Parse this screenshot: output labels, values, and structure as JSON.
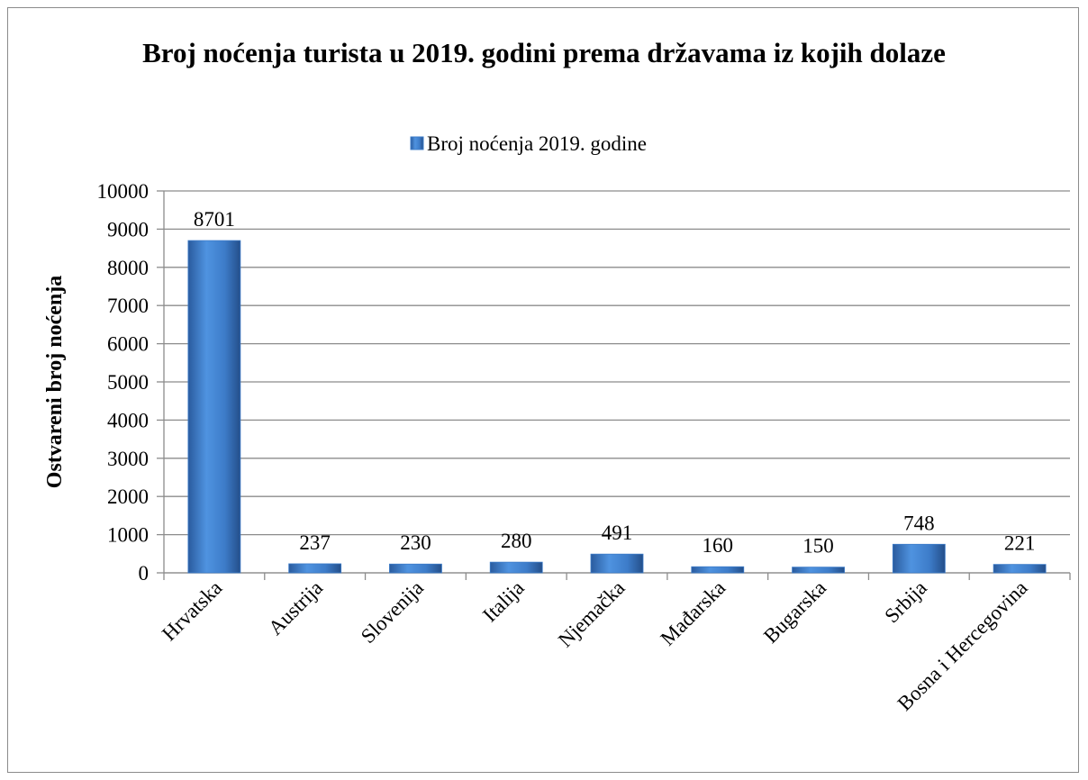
{
  "chart_data": {
    "type": "bar",
    "title": "Broj noćenja turista u 2019. godini prema državama iz kojih dolaze",
    "y_label": "Ostvareni broj noćenja",
    "categories": [
      "Hrvatska",
      "Austrija",
      "Slovenija",
      "Italija",
      "Njemačka",
      "Mađarska",
      "Bugarska",
      "Srbija",
      "Bosna i Hercegovina"
    ],
    "series": [
      {
        "name": "Broj noćenja 2019. godine",
        "color": "#3d7cc9",
        "values": [
          8701,
          237,
          230,
          280,
          491,
          160,
          150,
          748,
          221
        ]
      }
    ],
    "ylim": [
      0,
      10000
    ],
    "yticks": [
      0,
      1000,
      2000,
      3000,
      4000,
      5000,
      6000,
      7000,
      8000,
      9000,
      10000
    ],
    "grid": true,
    "legend": "top"
  }
}
